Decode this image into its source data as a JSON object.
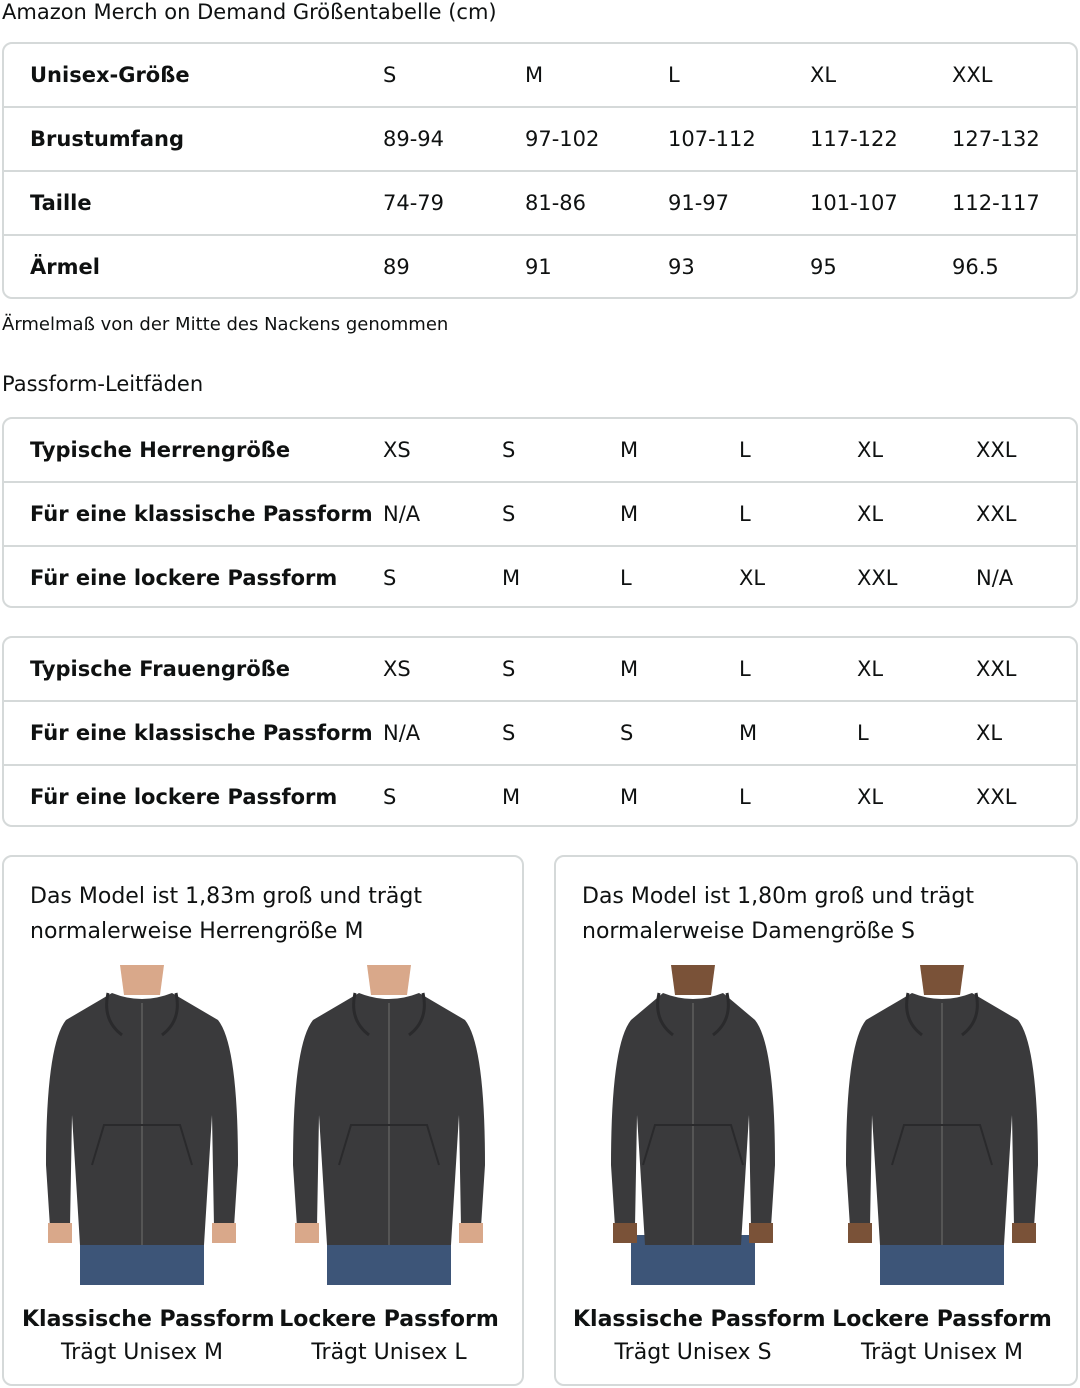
{
  "title": "Amazon Merch on Demand Größentabelle (cm)",
  "size_table": {
    "rows": [
      [
        "Unisex-Größe",
        "S",
        "M",
        "L",
        "XL",
        "XXL"
      ],
      [
        "Brustumfang",
        "89-94",
        "97-102",
        "107-112",
        "117-122",
        "127-132"
      ],
      [
        "Taille",
        "74-79",
        "81-86",
        "91-97",
        "101-107",
        "112-117"
      ],
      [
        "Ärmel",
        "89",
        "91",
        "93",
        "95",
        "96.5"
      ]
    ]
  },
  "note": "Ärmelmaß von der Mitte des Nackens genommen",
  "fit_heading": "Passform-Leitfäden",
  "men_table": {
    "rows": [
      [
        "Typische Herrengröße",
        "XS",
        "S",
        "M",
        "L",
        "XL",
        "XXL"
      ],
      [
        "Für eine klassische Passform",
        "N/A",
        "S",
        "M",
        "L",
        "XL",
        "XXL"
      ],
      [
        "Für eine lockere Passform",
        "S",
        "M",
        "L",
        "XL",
        "XXL",
        "N/A"
      ]
    ]
  },
  "women_table": {
    "rows": [
      [
        "Typische Frauengröße",
        "XS",
        "S",
        "M",
        "L",
        "XL",
        "XXL"
      ],
      [
        "Für eine klassische Passform",
        "N/A",
        "S",
        "S",
        "M",
        "L",
        "XL"
      ],
      [
        "Für eine lockere Passform",
        "S",
        "M",
        "M",
        "L",
        "XL",
        "XXL"
      ]
    ]
  },
  "cards": [
    {
      "text": "Das Model ist 1,83m groß und trägt normalerweise Herrengröße M",
      "figures": [
        {
          "title": "Klassische Passform",
          "subtitle": "Trägt Unisex M",
          "model": "man",
          "fit": "classic"
        },
        {
          "title": "Lockere Passform",
          "subtitle": "Trägt Unisex L",
          "model": "man",
          "fit": "loose"
        }
      ]
    },
    {
      "text": "Das Model ist 1,80m groß und trägt normalerweise Damengröße S",
      "figures": [
        {
          "title": "Klassische Passform",
          "subtitle": "Trägt Unisex S",
          "model": "woman",
          "fit": "classic"
        },
        {
          "title": "Lockere Passform",
          "subtitle": "Trägt Unisex M",
          "model": "woman",
          "fit": "loose"
        }
      ]
    }
  ],
  "colors": {
    "hoodie": "#3a3a3c",
    "border": "#d5d9d9",
    "jeans": "#3d5578"
  }
}
